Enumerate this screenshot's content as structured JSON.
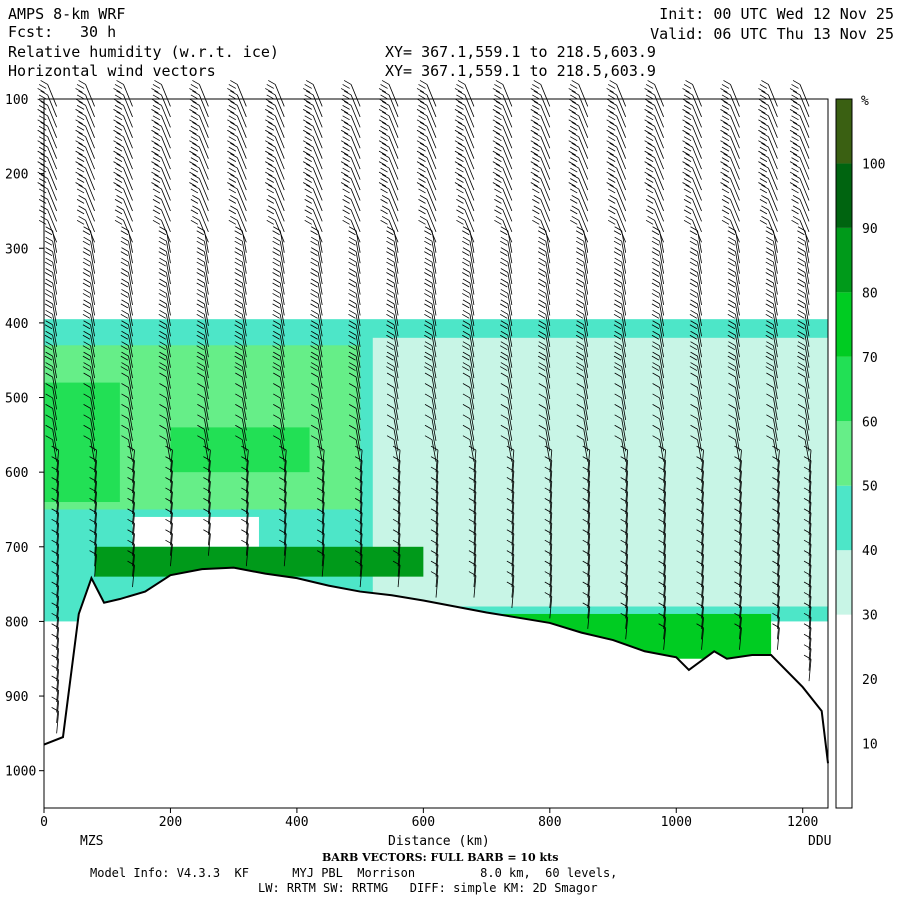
{
  "header": {
    "model": "AMPS 8-km WRF",
    "forecast_label": "Fcst:",
    "forecast_hours": "30 h",
    "field1": "Relative humidity (w.r.t. ice)",
    "field2": "Horizontal wind vectors",
    "init": "Init: 00 UTC Wed 12 Nov 25",
    "valid": "Valid: 06 UTC Thu 13 Nov 25",
    "xy1": "XY= 367.1,559.1 to 218.5,603.9",
    "xy2": "XY= 367.1,559.1 to 218.5,603.9"
  },
  "footer": {
    "left_end": "MZS",
    "right_end": "DDU",
    "xlabel": "Distance (km)",
    "barb_note": "BARB VECTORS: FULL BARB = 10 kts",
    "model_info_line": "Model Info: V4.3.3  KF      MYJ PBL  Morrison         8.0 km,  60 levels,",
    "physics_line": "LW: RRTM SW: RRTMG   DIFF: simple KM: 2D Smagor"
  },
  "colors": {
    "levels": [
      "#ffffff",
      "#ffffff",
      "#ffffff",
      "#c8f5e6",
      "#4de6c8",
      "#66ee88",
      "#22e055",
      "#00cc22",
      "#009a1a",
      "#006410",
      "#3a6012"
    ],
    "terrain_line": "#000000"
  },
  "chart_data": {
    "type": "heatmap",
    "title": "Relative humidity (w.r.t. ice)",
    "xlabel": "Distance (km)",
    "ylabel": "",
    "xlim": [
      0,
      1240
    ],
    "ylim": [
      1050,
      100
    ],
    "x_ticks": [
      0,
      200,
      400,
      600,
      800,
      1000,
      1200
    ],
    "y_ticks": [
      100,
      200,
      300,
      400,
      500,
      600,
      700,
      800,
      900,
      1000
    ],
    "colorbar": {
      "unit": "%",
      "bounds": [
        0,
        10,
        20,
        30,
        40,
        50,
        60,
        70,
        80,
        90,
        100,
        110
      ],
      "tick_labels": [
        10,
        20,
        30,
        40,
        50,
        60,
        70,
        80,
        90,
        100
      ]
    },
    "surface_pressure": {
      "x": [
        0,
        30,
        55,
        75,
        95,
        120,
        160,
        200,
        250,
        300,
        350,
        400,
        450,
        500,
        550,
        600,
        650,
        700,
        750,
        800,
        850,
        900,
        950,
        1000,
        1020,
        1060,
        1080,
        1120,
        1150,
        1200,
        1230,
        1240
      ],
      "p": [
        965,
        955,
        790,
        742,
        775,
        770,
        760,
        738,
        730,
        728,
        736,
        742,
        752,
        760,
        765,
        772,
        780,
        788,
        795,
        802,
        815,
        825,
        840,
        848,
        865,
        840,
        850,
        845,
        845,
        888,
        920,
        990
      ]
    },
    "wind_barb_columns_km": [
      20,
      80,
      140,
      200,
      260,
      320,
      380,
      440,
      500,
      560,
      620,
      680,
      740,
      800,
      860,
      920,
      980,
      1040,
      1100,
      1160,
      1210
    ],
    "rh_regions": [
      {
        "level": 40,
        "x": [
          0,
          1240
        ],
        "p": [
          395,
          800
        ]
      },
      {
        "level": 30,
        "x": [
          520,
          1240
        ],
        "p": [
          420,
          780
        ]
      },
      {
        "level": 50,
        "x": [
          0,
          500
        ],
        "p": [
          430,
          650
        ]
      },
      {
        "level": 60,
        "x": [
          0,
          120
        ],
        "p": [
          480,
          640
        ]
      },
      {
        "level": 60,
        "x": [
          200,
          420
        ],
        "p": [
          540,
          600
        ]
      },
      {
        "level": 0,
        "x": [
          140,
          340
        ],
        "p": [
          660,
          700
        ]
      },
      {
        "level": 80,
        "x": [
          80,
          600
        ],
        "p": [
          700,
          740
        ]
      },
      {
        "level": 70,
        "x": [
          600,
          1150
        ],
        "p": [
          790,
          850
        ]
      }
    ]
  }
}
